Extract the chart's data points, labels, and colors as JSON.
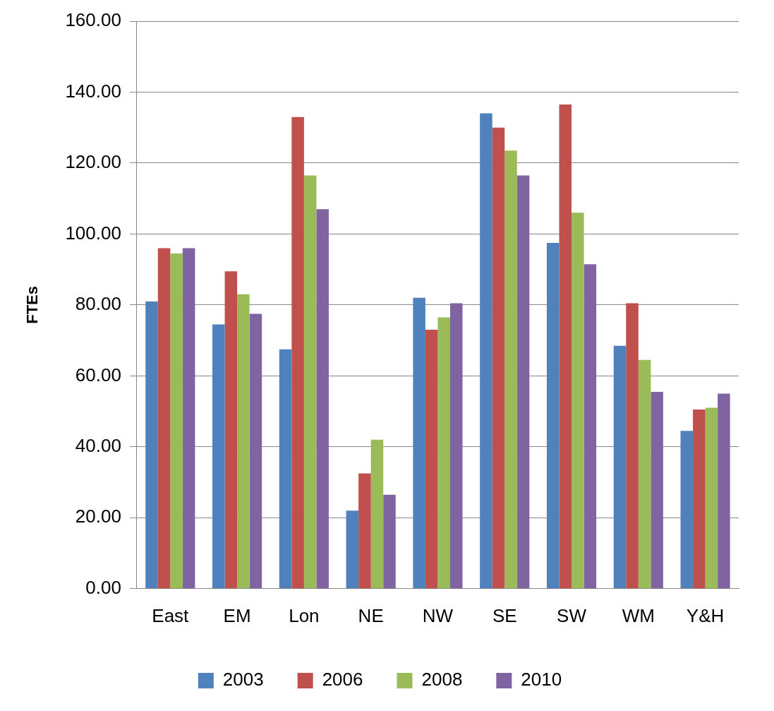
{
  "chart_data": {
    "type": "bar",
    "ylabel": "FTEs",
    "categories": [
      "East",
      "EM",
      "Lon",
      "NE",
      "NW",
      "SE",
      "SW",
      "WM",
      "Y&H"
    ],
    "series": [
      {
        "name": "2003",
        "color": "#4f81bd",
        "values": [
          81,
          74.5,
          67.5,
          22,
          82,
          134,
          97.5,
          68.5,
          44.5
        ]
      },
      {
        "name": "2006",
        "color": "#c0504d",
        "values": [
          96,
          89.5,
          133,
          32.5,
          73,
          130,
          136.5,
          80.5,
          50.5
        ]
      },
      {
        "name": "2008",
        "color": "#9bbb59",
        "values": [
          94.5,
          83,
          116.5,
          42,
          76.5,
          123.5,
          106,
          64.5,
          51
        ]
      },
      {
        "name": "2010",
        "color": "#8064a2",
        "values": [
          96,
          77.5,
          107,
          26.5,
          80.5,
          116.5,
          91.5,
          55.5,
          55
        ]
      }
    ],
    "ylim": [
      0,
      160
    ],
    "yticks": [
      {
        "value": 0,
        "label": "0.00"
      },
      {
        "value": 20,
        "label": "20.00"
      },
      {
        "value": 40,
        "label": "40.00"
      },
      {
        "value": 60,
        "label": "60.00"
      },
      {
        "value": 80,
        "label": "80.00"
      },
      {
        "value": 100,
        "label": "100.00"
      },
      {
        "value": 120,
        "label": "120.00"
      },
      {
        "value": 140,
        "label": "140.00"
      },
      {
        "value": 160,
        "label": "160.00"
      }
    ],
    "grid": "y",
    "legend": "bottom"
  }
}
